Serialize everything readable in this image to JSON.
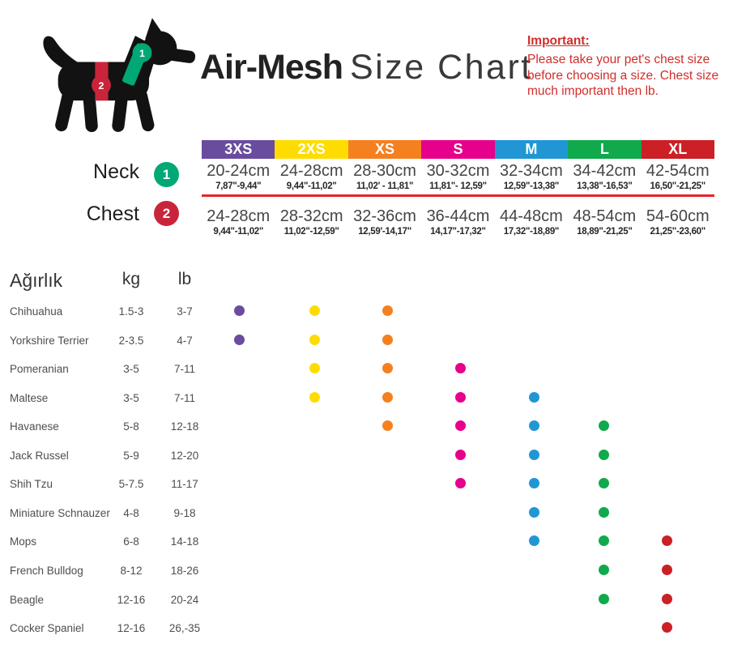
{
  "title": {
    "brand": "Air-Mesh",
    "rest": "Size Chart"
  },
  "important": {
    "heading": "Important:",
    "lines": [
      "Please take your pet's chest size",
      "before choosing a size. Chest size",
      "much important then lb."
    ]
  },
  "legend": {
    "neck_label": "Neck",
    "neck_number": "1",
    "chest_label": "Chest",
    "chest_number": "2"
  },
  "colors": {
    "title_text": "#222222",
    "important_text": "#cf2e2b",
    "divider": "#e6232b",
    "neck_marker": "#00a876",
    "chest_marker": "#c9253a",
    "dog_body": "#121212"
  },
  "sizes": [
    {
      "label": "3XS",
      "color": "#6a4c9f",
      "neck_cm": "20-24cm",
      "neck_in": "7,87\"-9,44\"",
      "chest_cm": "24-28cm",
      "chest_in": "9,44\"-11,02\""
    },
    {
      "label": "2XS",
      "color": "#ffdc00",
      "neck_cm": "24-28cm",
      "neck_in": "9,44\"-11,02\"",
      "chest_cm": "28-32cm",
      "chest_in": "11,02\"-12,59\""
    },
    {
      "label": "XS",
      "color": "#f58020",
      "neck_cm": "28-30cm",
      "neck_in": "11,02' - 11,81\"",
      "chest_cm": "32-36cm",
      "chest_in": "12,59'-14,17\""
    },
    {
      "label": "S",
      "color": "#e6008c",
      "neck_cm": "30-32cm",
      "neck_in": "11,81\"- 12,59\"",
      "chest_cm": "36-44cm",
      "chest_in": "14,17\"-17,32\""
    },
    {
      "label": "M",
      "color": "#2097d4",
      "neck_cm": "32-34cm",
      "neck_in": "12,59\"-13,38\"",
      "chest_cm": "44-48cm",
      "chest_in": "17,32\"-18,89\""
    },
    {
      "label": "L",
      "color": "#10a94b",
      "neck_cm": "34-42cm",
      "neck_in": "13,38\"-16,53\"",
      "chest_cm": "48-54cm",
      "chest_in": "18,89\"-21,25\""
    },
    {
      "label": "XL",
      "color": "#cb2026",
      "neck_cm": "42-54cm",
      "neck_in": "16,50\"-21,25\"",
      "chest_cm": "54-60cm",
      "chest_in": "21,25\"-23,60\""
    }
  ],
  "weight_table": {
    "headers": {
      "breed": "Ağırlık",
      "kg": "kg",
      "lb": "lb"
    },
    "breeds": [
      {
        "name": "Chihuahua",
        "kg": "1.5-3",
        "lb": "3-7",
        "sizes": [
          "3XS",
          "2XS",
          "XS"
        ]
      },
      {
        "name": "Yorkshire Terrier",
        "kg": "2-3.5",
        "lb": "4-7",
        "sizes": [
          "3XS",
          "2XS",
          "XS"
        ]
      },
      {
        "name": "Pomeranian",
        "kg": "3-5",
        "lb": "7-11",
        "sizes": [
          "2XS",
          "XS",
          "S"
        ]
      },
      {
        "name": "Maltese",
        "kg": "3-5",
        "lb": "7-11",
        "sizes": [
          "2XS",
          "XS",
          "S",
          "M"
        ]
      },
      {
        "name": "Havanese",
        "kg": "5-8",
        "lb": "12-18",
        "sizes": [
          "XS",
          "S",
          "M",
          "L"
        ]
      },
      {
        "name": "Jack Russel",
        "kg": "5-9",
        "lb": "12-20",
        "sizes": [
          "S",
          "M",
          "L"
        ]
      },
      {
        "name": "Shih Tzu",
        "kg": "5-7.5",
        "lb": "11-17",
        "sizes": [
          "S",
          "M",
          "L"
        ]
      },
      {
        "name": "Miniature Schnauzer",
        "kg": "4-8",
        "lb": "9-18",
        "sizes": [
          "M",
          "L"
        ]
      },
      {
        "name": "Mops",
        "kg": "6-8",
        "lb": "14-18",
        "sizes": [
          "M",
          "L",
          "XL"
        ]
      },
      {
        "name": "French Bulldog",
        "kg": "8-12",
        "lb": "18-26",
        "sizes": [
          "L",
          "XL"
        ]
      },
      {
        "name": "Beagle",
        "kg": "12-16",
        "lb": "20-24",
        "sizes": [
          "L",
          "XL"
        ]
      },
      {
        "name": "Cocker Spaniel",
        "kg": "12-16",
        "lb": "26,-35",
        "sizes": [
          "XL"
        ]
      }
    ]
  },
  "chart_data": [
    {
      "type": "table",
      "title": "Air-Mesh Size Chart",
      "columns": [
        "3XS",
        "2XS",
        "XS",
        "S",
        "M",
        "L",
        "XL"
      ],
      "rows": [
        {
          "label": "Neck cm",
          "values": [
            "20-24",
            "24-28",
            "28-30",
            "30-32",
            "32-34",
            "34-42",
            "42-54"
          ]
        },
        {
          "label": "Neck in",
          "values": [
            "7,87-9,44",
            "9,44-11,02",
            "11,02-11,81",
            "11,81-12,59",
            "12,59-13,38",
            "13,38-16,53",
            "16,50-21,25"
          ]
        },
        {
          "label": "Chest cm",
          "values": [
            "24-28",
            "28-32",
            "32-36",
            "36-44",
            "44-48",
            "48-54",
            "54-60"
          ]
        },
        {
          "label": "Chest in",
          "values": [
            "9,44-11,02",
            "11,02-12,59",
            "12,59-14,17",
            "14,17-17,32",
            "17,32-18,89",
            "18,89-21,25",
            "21,25-23,60"
          ]
        }
      ]
    },
    {
      "type": "heatmap",
      "title": "Breed weight vs. recommended sizes (dot matrix)",
      "x_categories": [
        "3XS",
        "2XS",
        "XS",
        "S",
        "M",
        "L",
        "XL"
      ],
      "y_categories": [
        "Chihuahua",
        "Yorkshire Terrier",
        "Pomeranian",
        "Maltese",
        "Havanese",
        "Jack Russel",
        "Shih Tzu",
        "Miniature Schnauzer",
        "Mops",
        "French Bulldog",
        "Beagle",
        "Cocker Spaniel"
      ],
      "marks": [
        [
          "3XS",
          "2XS",
          "XS"
        ],
        [
          "3XS",
          "2XS",
          "XS"
        ],
        [
          "2XS",
          "XS",
          "S"
        ],
        [
          "2XS",
          "XS",
          "S",
          "M"
        ],
        [
          "XS",
          "S",
          "M",
          "L"
        ],
        [
          "S",
          "M",
          "L"
        ],
        [
          "S",
          "M",
          "L"
        ],
        [
          "M",
          "L"
        ],
        [
          "M",
          "L",
          "XL"
        ],
        [
          "L",
          "XL"
        ],
        [
          "L",
          "XL"
        ],
        [
          "XL"
        ]
      ],
      "kg": [
        "1.5-3",
        "2-3.5",
        "3-5",
        "3-5",
        "5-8",
        "5-9",
        "5-7.5",
        "4-8",
        "6-8",
        "8-12",
        "12-16",
        "12-16"
      ],
      "lb": [
        "3-7",
        "4-7",
        "7-11",
        "7-11",
        "12-18",
        "12-20",
        "11-17",
        "9-18",
        "14-18",
        "18-26",
        "20-24",
        "26,-35"
      ]
    }
  ]
}
